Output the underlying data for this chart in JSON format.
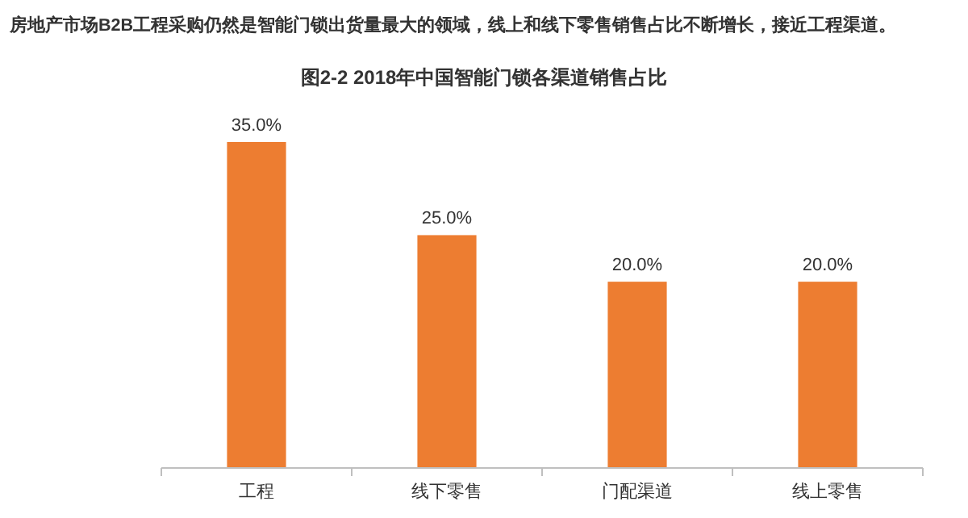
{
  "chart_data": {
    "type": "bar",
    "subtitle": "房地产市场B2B工程采购仍然是智能门锁出货量最大的领域，线上和线下零售销售占比不断增长，接近工程渠道。",
    "title": "图2-2 2018年中国智能门锁各渠道销售占比",
    "categories": [
      "工程",
      "线下零售",
      "门配渠道",
      "线上零售"
    ],
    "values": [
      35,
      25,
      20,
      20
    ],
    "value_labels": [
      "35.0%",
      "25.0%",
      "20.0%",
      "20.0%"
    ],
    "color": "#ed7d31"
  }
}
